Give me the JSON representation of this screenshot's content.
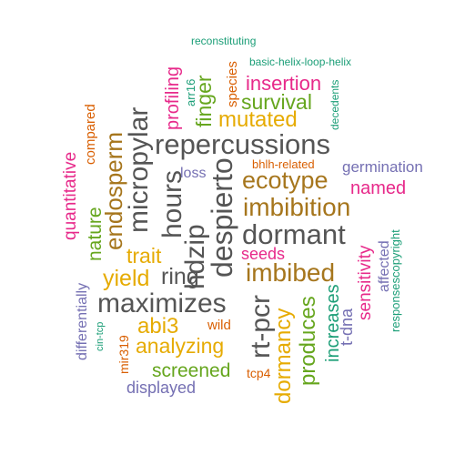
{
  "palette": {
    "teal": "#1b9e77",
    "orange": "#d95f02",
    "purple": "#7570b3",
    "magenta": "#e7298a",
    "green": "#66a61e",
    "gold": "#e6ab02",
    "olive": "#a6761d",
    "gray": "#555555"
  },
  "words": [
    {
      "text": "reconstituting",
      "color": "teal",
      "rotated": false
    },
    {
      "text": "basic-helix-loop-helix",
      "color": "teal",
      "rotated": false
    },
    {
      "text": "profiling",
      "color": "magenta",
      "rotated": true
    },
    {
      "text": "arr16",
      "color": "teal",
      "rotated": true
    },
    {
      "text": "finger",
      "color": "green",
      "rotated": true
    },
    {
      "text": "species",
      "color": "orange",
      "rotated": true
    },
    {
      "text": "insertion",
      "color": "magenta",
      "rotated": false
    },
    {
      "text": "decedents",
      "color": "teal",
      "rotated": true
    },
    {
      "text": "survival",
      "color": "green",
      "rotated": false
    },
    {
      "text": "micropylar",
      "color": "gray",
      "rotated": true
    },
    {
      "text": "compared",
      "color": "orange",
      "rotated": true
    },
    {
      "text": "mutated",
      "color": "gold",
      "rotated": false
    },
    {
      "text": "repercussions",
      "color": "gray",
      "rotated": false
    },
    {
      "text": "quantitative",
      "color": "magenta",
      "rotated": true
    },
    {
      "text": "bhlh-related",
      "color": "orange",
      "rotated": false
    },
    {
      "text": "germination",
      "color": "purple",
      "rotated": false
    },
    {
      "text": "endosperm",
      "color": "olive",
      "rotated": true
    },
    {
      "text": "hours",
      "color": "gray",
      "rotated": true
    },
    {
      "text": "loss",
      "color": "purple",
      "rotated": false
    },
    {
      "text": "ecotype",
      "color": "olive",
      "rotated": false
    },
    {
      "text": "named",
      "color": "magenta",
      "rotated": false
    },
    {
      "text": "despierto",
      "color": "gray",
      "rotated": true
    },
    {
      "text": "imbibition",
      "color": "olive",
      "rotated": false
    },
    {
      "text": "nature",
      "color": "green",
      "rotated": true
    },
    {
      "text": "hdzip",
      "color": "gray",
      "rotated": true
    },
    {
      "text": "affected",
      "color": "purple",
      "rotated": true
    },
    {
      "text": "responsescopyright",
      "color": "teal",
      "rotated": true
    },
    {
      "text": "dormant",
      "color": "gray",
      "rotated": false
    },
    {
      "text": "sensitivity",
      "color": "magenta",
      "rotated": true
    },
    {
      "text": "trait",
      "color": "gold",
      "rotated": false
    },
    {
      "text": "seeds",
      "color": "magenta",
      "rotated": false
    },
    {
      "text": "differentially",
      "color": "purple",
      "rotated": true
    },
    {
      "text": "imbibed",
      "color": "olive",
      "rotated": false
    },
    {
      "text": "yield",
      "color": "gold",
      "rotated": false
    },
    {
      "text": "ring",
      "color": "gray",
      "rotated": false
    },
    {
      "text": "t-dna",
      "color": "purple",
      "rotated": true
    },
    {
      "text": "maximizes",
      "color": "gray",
      "rotated": false
    },
    {
      "text": "produces",
      "color": "green",
      "rotated": true
    },
    {
      "text": "increases",
      "color": "teal",
      "rotated": true
    },
    {
      "text": "dormancy",
      "color": "gold",
      "rotated": true
    },
    {
      "text": "rt-pcr",
      "color": "gray",
      "rotated": true
    },
    {
      "text": "abi3",
      "color": "gold",
      "rotated": false
    },
    {
      "text": "cin-tcp",
      "color": "teal",
      "rotated": true
    },
    {
      "text": "wild",
      "color": "orange",
      "rotated": false
    },
    {
      "text": "mir319",
      "color": "orange",
      "rotated": true
    },
    {
      "text": "analyzing",
      "color": "gold",
      "rotated": false
    },
    {
      "text": "screened",
      "color": "green",
      "rotated": false
    },
    {
      "text": "tcp4",
      "color": "orange",
      "rotated": false
    },
    {
      "text": "displayed",
      "color": "purple",
      "rotated": false
    }
  ]
}
